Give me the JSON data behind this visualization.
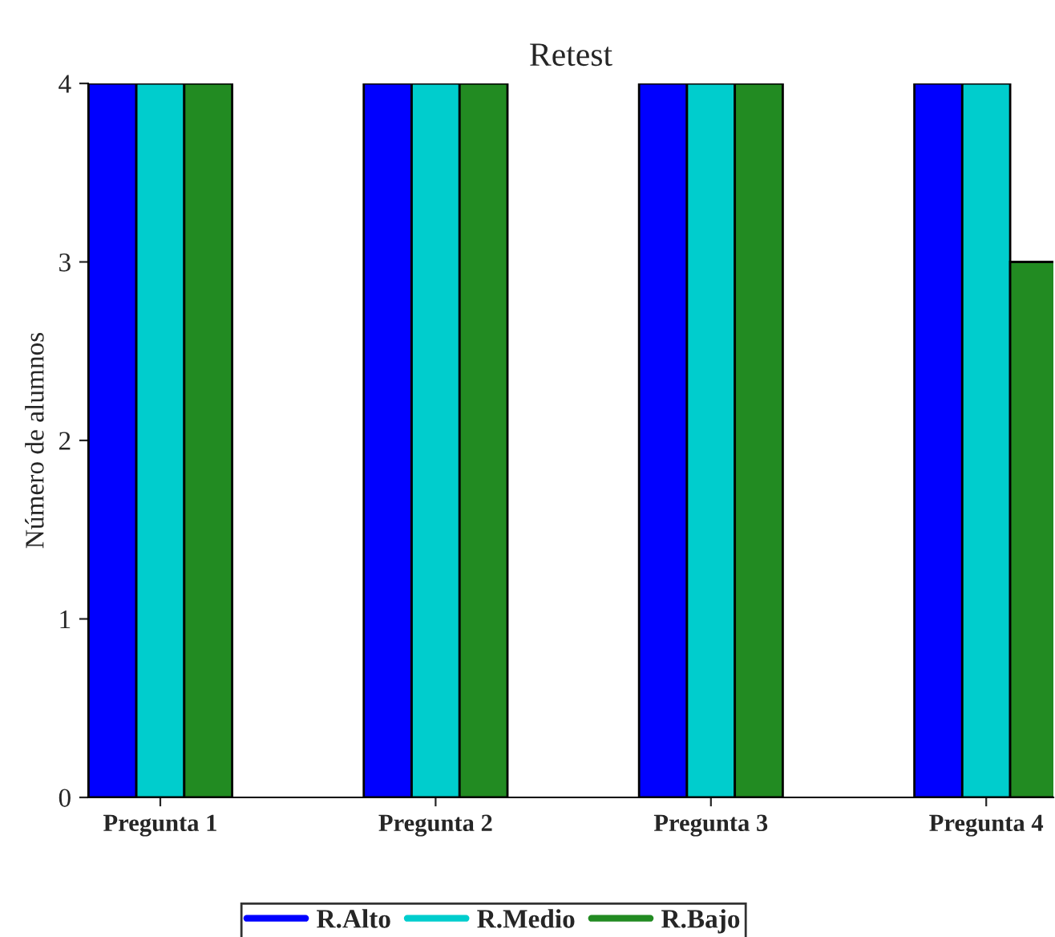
{
  "chart_data": {
    "type": "bar",
    "title": "Retest",
    "ylabel": "Número de alumnos",
    "categories": [
      "Pregunta 1",
      "Pregunta 2",
      "Pregunta 3",
      "Pregunta 4"
    ],
    "series": [
      {
        "name": "R.Alto",
        "color": "#0000ff",
        "values": [
          4,
          4,
          4,
          4
        ]
      },
      {
        "name": "R.Medio",
        "color": "#00cdcd",
        "values": [
          4,
          4,
          4,
          4
        ]
      },
      {
        "name": "R.Bajo",
        "color": "#228b22",
        "values": [
          4,
          4,
          4,
          3
        ]
      }
    ],
    "ylim": [
      0,
      4
    ],
    "yticks": [
      0,
      1,
      2,
      3,
      4
    ],
    "grid": false,
    "legend": "bottom"
  }
}
